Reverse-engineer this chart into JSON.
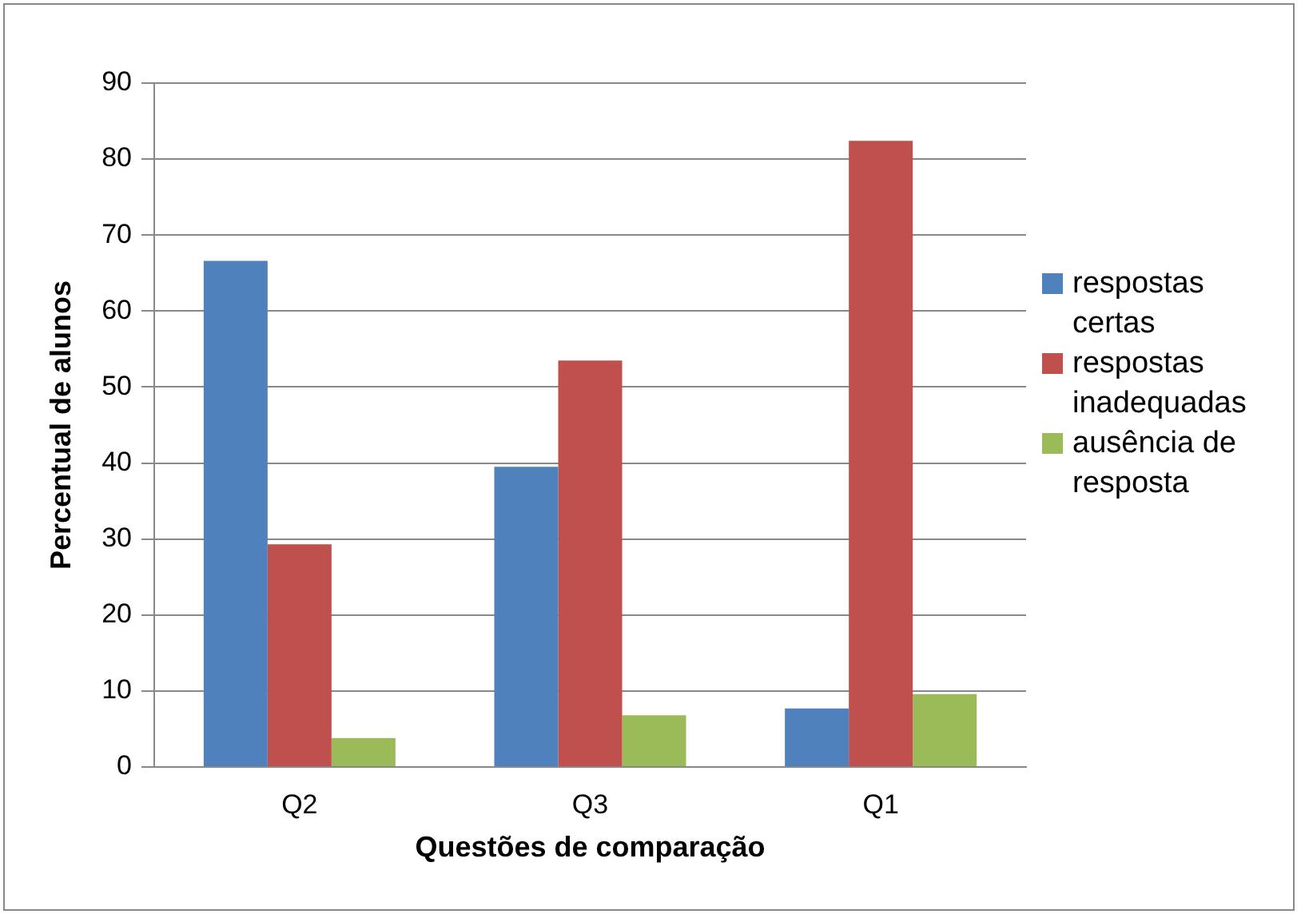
{
  "chart_data": {
    "type": "bar",
    "xlabel": "Questões de comparação",
    "ylabel": "Percentual de alunos",
    "categories": [
      "Q2",
      "Q3",
      "Q1"
    ],
    "series": [
      {
        "name": "respostas certas",
        "color": "#4f81bd",
        "values": [
          66.6,
          39.5,
          7.7
        ]
      },
      {
        "name": "respostas inadequadas",
        "color": "#c0504d",
        "values": [
          29.3,
          53.5,
          82.4
        ]
      },
      {
        "name": "ausência de resposta",
        "color": "#9bbb59",
        "values": [
          3.8,
          6.8,
          9.6
        ]
      }
    ],
    "ylim": [
      0,
      90
    ],
    "yticks": [
      0,
      10,
      20,
      30,
      40,
      50,
      60,
      70,
      80,
      90
    ],
    "grid": "y",
    "legend": "right"
  }
}
